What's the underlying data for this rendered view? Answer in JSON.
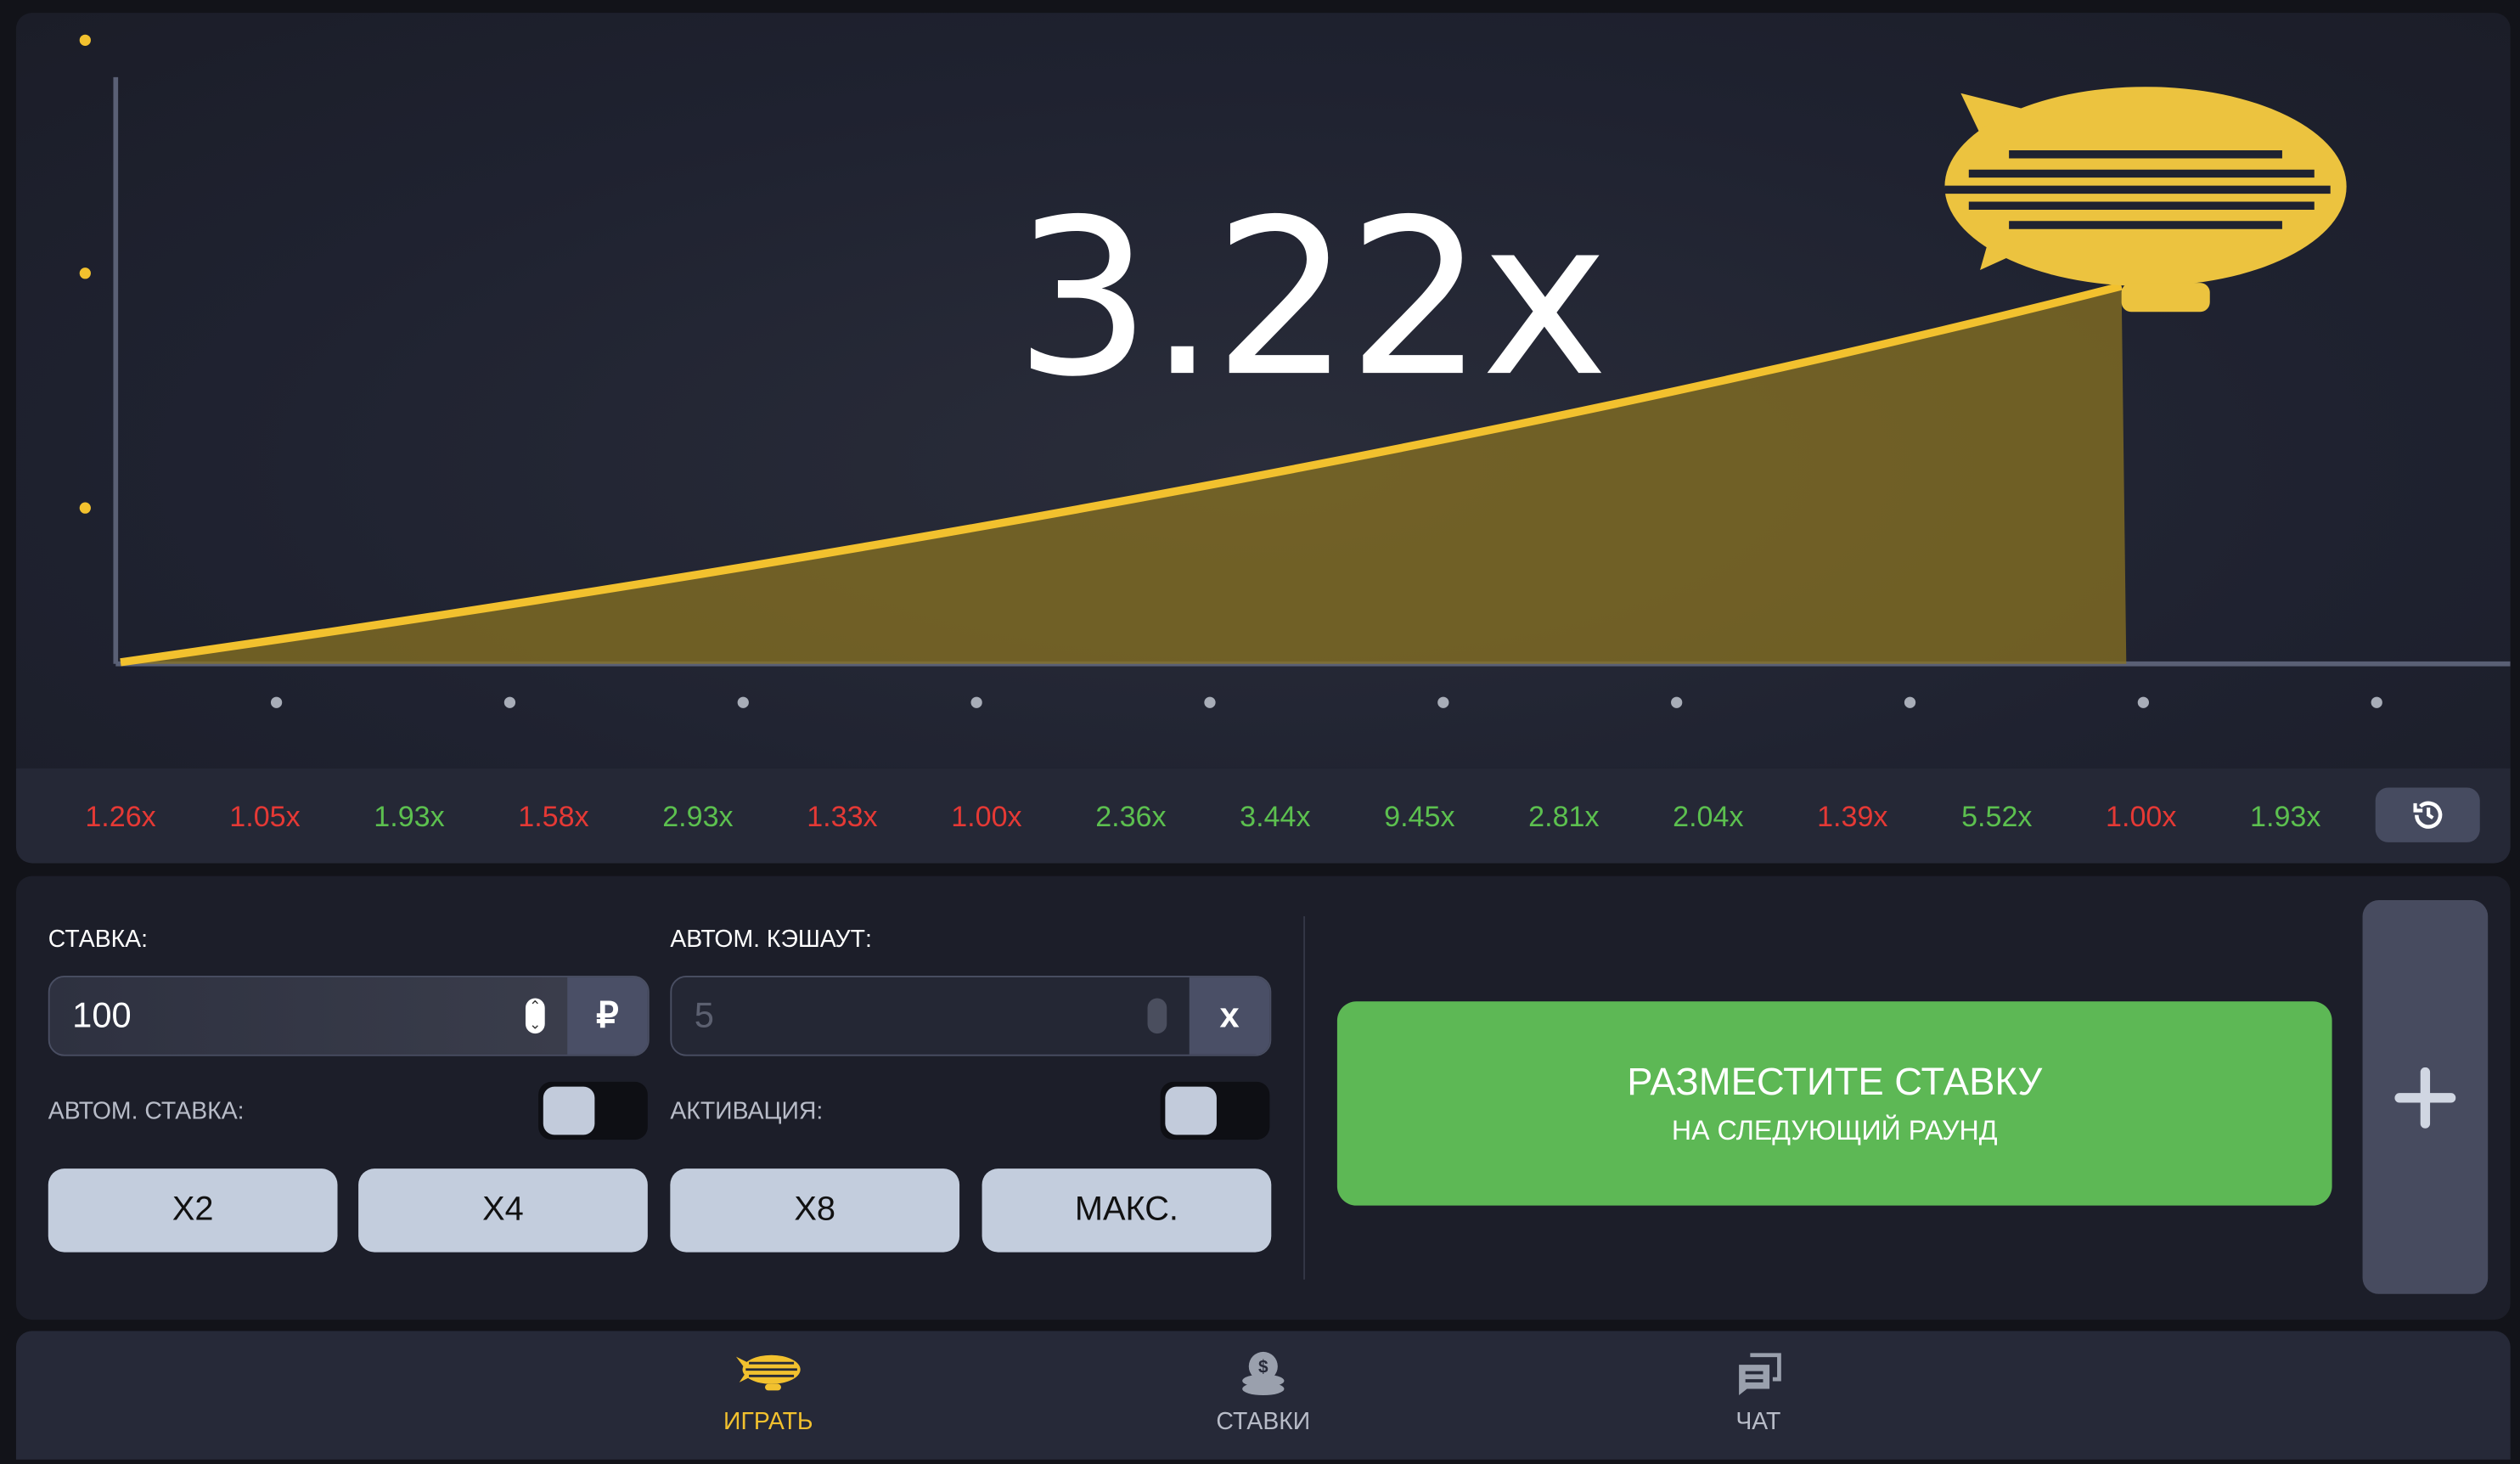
{
  "game": {
    "multiplier": "3.22x",
    "accent": "#f2c12e"
  },
  "history": [
    {
      "v": "1.26x",
      "c": "#e53935"
    },
    {
      "v": "1.05x",
      "c": "#e53935"
    },
    {
      "v": "1.93x",
      "c": "#5cc04f"
    },
    {
      "v": "1.58x",
      "c": "#e53935"
    },
    {
      "v": "2.93x",
      "c": "#5cc04f"
    },
    {
      "v": "1.33x",
      "c": "#e53935"
    },
    {
      "v": "1.00x",
      "c": "#e53935"
    },
    {
      "v": "2.36x",
      "c": "#5cc04f"
    },
    {
      "v": "3.44x",
      "c": "#5cc04f"
    },
    {
      "v": "9.45x",
      "c": "#5cc04f"
    },
    {
      "v": "2.81x",
      "c": "#5cc04f"
    },
    {
      "v": "2.04x",
      "c": "#5cc04f"
    },
    {
      "v": "1.39x",
      "c": "#e53935"
    },
    {
      "v": "5.52x",
      "c": "#5cc04f"
    },
    {
      "v": "1.00x",
      "c": "#e53935"
    },
    {
      "v": "1.93x",
      "c": "#5cc04f"
    }
  ],
  "bet": {
    "stake_label": "СТАВКА:",
    "stake_value": "100",
    "currency": "₽",
    "cashout_label": "АВТОМ. КЭШАУТ:",
    "cashout_placeholder": "5",
    "cashout_suffix": "x",
    "autobet_label": "АВТОМ. СТАВКА:",
    "autobet_on": false,
    "activation_label": "АКТИВАЦИЯ:",
    "activation_on": false,
    "quick": [
      "X2",
      "X4",
      "X8",
      "МАКС."
    ],
    "place_title": "РАЗМЕСТИТЕ СТАВКУ",
    "place_sub": "НА СЛЕДУЮЩИЙ РАУНД"
  },
  "nav": [
    {
      "label": "ИГРАТЬ",
      "active": true
    },
    {
      "label": "СТАВКИ",
      "active": false
    },
    {
      "label": "ЧАТ",
      "active": false
    }
  ]
}
